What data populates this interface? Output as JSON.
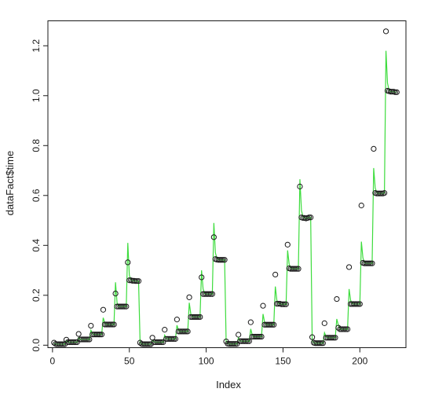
{
  "chart_data": {
    "type": "scatter",
    "title": "",
    "xlabel": "Index",
    "ylabel": "dataFact$time",
    "xlim": [
      -3,
      230
    ],
    "ylim": [
      -0.01,
      1.3
    ],
    "xticks": [
      0,
      50,
      100,
      150,
      200
    ],
    "yticks": [
      0.0,
      0.2,
      0.4,
      0.6,
      0.8,
      1.0,
      1.2
    ],
    "xtick_labels": [
      "0",
      "50",
      "100",
      "150",
      "200"
    ],
    "ytick_labels": [
      "0.0",
      "0.2",
      "0.4",
      "0.6",
      "0.8",
      "1.0",
      "1.2"
    ],
    "grid": false,
    "legend": "none",
    "series": [
      {
        "kind": "points",
        "color": "#1a1a1a",
        "x": [
          1,
          2,
          3,
          4,
          5,
          6,
          7,
          8,
          9,
          10,
          11,
          12,
          13,
          14,
          15,
          16,
          17,
          18,
          19,
          20,
          21,
          22,
          23,
          24,
          25,
          26,
          27,
          28,
          29,
          30,
          31,
          32,
          33,
          34,
          35,
          36,
          37,
          38,
          39,
          40,
          41,
          42,
          43,
          44,
          45,
          46,
          47,
          48,
          49,
          50,
          51,
          52,
          53,
          54,
          55,
          56,
          57,
          58,
          59,
          60,
          61,
          62,
          63,
          64,
          65,
          66,
          67,
          68,
          69,
          70,
          71,
          72,
          73,
          74,
          75,
          76,
          77,
          78,
          79,
          80,
          81,
          82,
          83,
          84,
          85,
          86,
          87,
          88,
          89,
          90,
          91,
          92,
          93,
          94,
          95,
          96,
          97,
          98,
          99,
          100,
          101,
          102,
          103,
          104,
          105,
          106,
          107,
          108,
          109,
          110,
          111,
          112,
          113,
          114,
          115,
          116,
          117,
          118,
          119,
          120,
          121,
          122,
          123,
          124,
          125,
          126,
          127,
          128,
          129,
          130,
          131,
          132,
          133,
          134,
          135,
          136,
          137,
          138,
          139,
          140,
          141,
          142,
          143,
          144,
          145,
          146,
          147,
          148,
          149,
          150,
          151,
          152,
          153,
          154,
          155,
          156,
          157,
          158,
          159,
          160,
          161,
          162,
          163,
          164,
          165,
          166,
          167,
          168,
          169,
          170,
          171,
          172,
          173,
          174,
          175,
          176,
          177,
          178,
          179,
          180,
          181,
          182,
          183,
          184,
          185,
          186,
          187,
          188,
          189,
          190,
          191,
          192,
          193,
          194,
          195,
          196,
          197,
          198,
          199,
          200,
          201,
          202,
          203,
          204,
          205,
          206,
          207,
          208,
          209,
          210,
          211,
          212,
          213,
          214,
          215,
          216,
          217,
          218,
          219,
          220,
          221,
          222,
          223,
          224
        ],
        "y": [
          0.01,
          0.005,
          0.004,
          0.004,
          0.004,
          0.004,
          0.004,
          0.004,
          0.022,
          0.012,
          0.012,
          0.012,
          0.012,
          0.012,
          0.012,
          0.012,
          0.045,
          0.023,
          0.023,
          0.023,
          0.023,
          0.023,
          0.023,
          0.023,
          0.078,
          0.043,
          0.043,
          0.043,
          0.043,
          0.043,
          0.043,
          0.043,
          0.142,
          0.083,
          0.083,
          0.083,
          0.083,
          0.083,
          0.083,
          0.083,
          0.207,
          0.155,
          0.155,
          0.155,
          0.155,
          0.155,
          0.155,
          0.155,
          0.332,
          0.26,
          0.26,
          0.258,
          0.258,
          0.257,
          0.257,
          0.257,
          0.01,
          0.005,
          0.004,
          0.004,
          0.004,
          0.004,
          0.004,
          0.004,
          0.03,
          0.012,
          0.012,
          0.012,
          0.012,
          0.012,
          0.012,
          0.012,
          0.062,
          0.025,
          0.025,
          0.025,
          0.025,
          0.025,
          0.025,
          0.025,
          0.103,
          0.055,
          0.055,
          0.055,
          0.055,
          0.055,
          0.055,
          0.055,
          0.192,
          0.113,
          0.113,
          0.113,
          0.113,
          0.113,
          0.113,
          0.113,
          0.272,
          0.205,
          0.205,
          0.205,
          0.205,
          0.205,
          0.205,
          0.205,
          0.433,
          0.345,
          0.343,
          0.342,
          0.342,
          0.342,
          0.342,
          0.342,
          0.015,
          0.006,
          0.005,
          0.005,
          0.005,
          0.005,
          0.005,
          0.005,
          0.042,
          0.016,
          0.016,
          0.016,
          0.016,
          0.016,
          0.016,
          0.016,
          0.092,
          0.034,
          0.034,
          0.034,
          0.034,
          0.034,
          0.034,
          0.034,
          0.158,
          0.082,
          0.082,
          0.082,
          0.082,
          0.082,
          0.082,
          0.082,
          0.283,
          0.166,
          0.166,
          0.166,
          0.164,
          0.164,
          0.164,
          0.164,
          0.403,
          0.308,
          0.306,
          0.306,
          0.306,
          0.306,
          0.306,
          0.306,
          0.636,
          0.512,
          0.51,
          0.51,
          0.508,
          0.51,
          0.512,
          0.512,
          0.032,
          0.01,
          0.008,
          0.008,
          0.008,
          0.008,
          0.008,
          0.008,
          0.088,
          0.03,
          0.03,
          0.03,
          0.03,
          0.03,
          0.03,
          0.03,
          0.185,
          0.07,
          0.064,
          0.064,
          0.064,
          0.064,
          0.064,
          0.064,
          0.313,
          0.165,
          0.165,
          0.165,
          0.165,
          0.165,
          0.165,
          0.165,
          0.56,
          0.33,
          0.328,
          0.328,
          0.328,
          0.328,
          0.328,
          0.328,
          0.787,
          0.61,
          0.608,
          0.608,
          0.608,
          0.608,
          0.608,
          0.61,
          1.258,
          1.02,
          1.018,
          1.016,
          1.016,
          1.016,
          1.014,
          1.014
        ]
      },
      {
        "kind": "line",
        "color": "#3ddc3d",
        "x": [
          1,
          2,
          3,
          4,
          5,
          6,
          7,
          8,
          9,
          10,
          11,
          12,
          13,
          14,
          15,
          16,
          17,
          18,
          19,
          20,
          21,
          22,
          23,
          24,
          25,
          26,
          27,
          28,
          29,
          30,
          31,
          32,
          33,
          34,
          35,
          36,
          37,
          38,
          39,
          40,
          41,
          42,
          43,
          44,
          45,
          46,
          47,
          48,
          49,
          50,
          51,
          52,
          53,
          54,
          55,
          56,
          57,
          58,
          59,
          60,
          61,
          62,
          63,
          64,
          65,
          66,
          67,
          68,
          69,
          70,
          71,
          72,
          73,
          74,
          75,
          76,
          77,
          78,
          79,
          80,
          81,
          82,
          83,
          84,
          85,
          86,
          87,
          88,
          89,
          90,
          91,
          92,
          93,
          94,
          95,
          96,
          97,
          98,
          99,
          100,
          101,
          102,
          103,
          104,
          105,
          106,
          107,
          108,
          109,
          110,
          111,
          112,
          113,
          114,
          115,
          116,
          117,
          118,
          119,
          120,
          121,
          122,
          123,
          124,
          125,
          126,
          127,
          128,
          129,
          130,
          131,
          132,
          133,
          134,
          135,
          136,
          137,
          138,
          139,
          140,
          141,
          142,
          143,
          144,
          145,
          146,
          147,
          148,
          149,
          150,
          151,
          152,
          153,
          154,
          155,
          156,
          157,
          158,
          159,
          160,
          161,
          162,
          163,
          164,
          165,
          166,
          167,
          168,
          169,
          170,
          171,
          172,
          173,
          174,
          175,
          176,
          177,
          178,
          179,
          180,
          181,
          182,
          183,
          184,
          185,
          186,
          187,
          188,
          189,
          190,
          191,
          192,
          193,
          194,
          195,
          196,
          197,
          198,
          199,
          200,
          201,
          202,
          203,
          204,
          205,
          206,
          207,
          208,
          209,
          210,
          211,
          212,
          213,
          214,
          215,
          216,
          217,
          218,
          219,
          220,
          221,
          222,
          223,
          224
        ],
        "y": [
          0.008,
          0.005,
          0.004,
          0.004,
          0.004,
          0.004,
          0.004,
          0.004,
          0.018,
          0.013,
          0.012,
          0.012,
          0.012,
          0.012,
          0.012,
          0.012,
          0.03,
          0.024,
          0.023,
          0.023,
          0.023,
          0.023,
          0.023,
          0.023,
          0.06,
          0.046,
          0.043,
          0.043,
          0.043,
          0.043,
          0.043,
          0.043,
          0.11,
          0.09,
          0.083,
          0.083,
          0.083,
          0.083,
          0.083,
          0.083,
          0.252,
          0.17,
          0.156,
          0.155,
          0.155,
          0.155,
          0.155,
          0.155,
          0.41,
          0.28,
          0.262,
          0.258,
          0.258,
          0.257,
          0.257,
          0.257,
          0.01,
          0.006,
          0.004,
          0.004,
          0.004,
          0.004,
          0.004,
          0.004,
          0.02,
          0.014,
          0.012,
          0.012,
          0.012,
          0.012,
          0.012,
          0.012,
          0.04,
          0.028,
          0.025,
          0.025,
          0.025,
          0.025,
          0.025,
          0.025,
          0.08,
          0.06,
          0.055,
          0.055,
          0.055,
          0.055,
          0.055,
          0.055,
          0.17,
          0.125,
          0.114,
          0.113,
          0.113,
          0.113,
          0.113,
          0.113,
          0.3,
          0.225,
          0.207,
          0.205,
          0.205,
          0.205,
          0.205,
          0.205,
          0.49,
          0.37,
          0.348,
          0.343,
          0.342,
          0.342,
          0.342,
          0.342,
          0.012,
          0.007,
          0.005,
          0.005,
          0.005,
          0.005,
          0.005,
          0.005,
          0.03,
          0.019,
          0.016,
          0.016,
          0.016,
          0.016,
          0.016,
          0.016,
          0.065,
          0.04,
          0.034,
          0.034,
          0.034,
          0.034,
          0.034,
          0.034,
          0.125,
          0.092,
          0.083,
          0.082,
          0.082,
          0.082,
          0.082,
          0.082,
          0.235,
          0.18,
          0.168,
          0.166,
          0.164,
          0.164,
          0.164,
          0.164,
          0.38,
          0.325,
          0.31,
          0.306,
          0.306,
          0.306,
          0.306,
          0.306,
          0.665,
          0.54,
          0.515,
          0.51,
          0.508,
          0.51,
          0.512,
          0.512,
          0.015,
          0.01,
          0.008,
          0.008,
          0.008,
          0.008,
          0.008,
          0.008,
          0.05,
          0.035,
          0.03,
          0.03,
          0.03,
          0.03,
          0.03,
          0.03,
          0.105,
          0.08,
          0.068,
          0.064,
          0.064,
          0.064,
          0.064,
          0.064,
          0.225,
          0.18,
          0.167,
          0.165,
          0.165,
          0.165,
          0.165,
          0.165,
          0.415,
          0.35,
          0.332,
          0.328,
          0.328,
          0.328,
          0.328,
          0.328,
          0.71,
          0.63,
          0.612,
          0.608,
          0.608,
          0.608,
          0.608,
          0.61,
          1.18,
          1.05,
          1.022,
          1.016,
          1.016,
          1.016,
          1.014,
          1.014
        ]
      }
    ]
  }
}
